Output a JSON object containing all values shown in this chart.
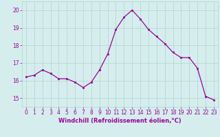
{
  "x": [
    0,
    1,
    2,
    3,
    4,
    5,
    6,
    7,
    8,
    9,
    10,
    11,
    12,
    13,
    14,
    15,
    16,
    17,
    18,
    19,
    20,
    21,
    22,
    23
  ],
  "y": [
    16.2,
    16.3,
    16.6,
    16.4,
    16.1,
    16.1,
    15.9,
    15.6,
    15.9,
    16.6,
    17.5,
    18.9,
    19.6,
    20.0,
    19.5,
    18.9,
    18.5,
    18.1,
    17.6,
    17.3,
    17.3,
    16.7,
    15.1,
    14.9
  ],
  "line_color": "#990099",
  "marker": "s",
  "marker_size": 2,
  "linewidth": 0.9,
  "bg_color": "#d5eeed",
  "grid_color": "#b0d4d0",
  "xlabel": "Windchill (Refroidissement éolien,°C)",
  "xlabel_color": "#990099",
  "tick_color": "#990099",
  "xlabel_fontsize": 6.0,
  "tick_fontsize": 5.5,
  "ylim": [
    14.5,
    20.5
  ],
  "yticks": [
    15,
    16,
    17,
    18,
    19,
    20
  ],
  "xticks": [
    0,
    1,
    2,
    3,
    4,
    5,
    6,
    7,
    8,
    9,
    10,
    11,
    12,
    13,
    14,
    15,
    16,
    17,
    18,
    19,
    20,
    21,
    22,
    23
  ]
}
